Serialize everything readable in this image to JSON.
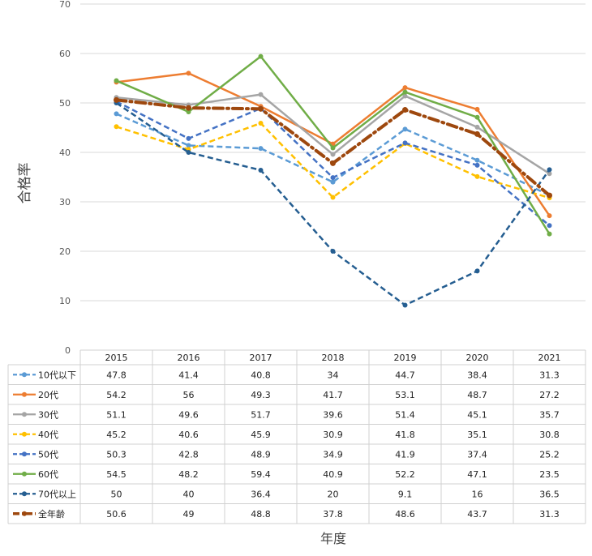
{
  "chart_data": {
    "type": "line",
    "title": "",
    "xlabel": "年度",
    "ylabel": "合格率",
    "ylim": [
      0,
      70
    ],
    "yticks": [
      0,
      10,
      20,
      30,
      40,
      50,
      60,
      70
    ],
    "grid": true,
    "legend": "data-table-left",
    "categories": [
      "2015",
      "2016",
      "2017",
      "2018",
      "2019",
      "2020",
      "2021"
    ],
    "series": [
      {
        "name": "10代以下",
        "values": [
          47.8,
          41.4,
          40.8,
          34,
          44.7,
          38.4,
          31.3
        ],
        "color": "#5b9bd5",
        "dash": "dash",
        "width": 2.5
      },
      {
        "name": "20代",
        "values": [
          54.2,
          56,
          49.3,
          41.7,
          53.1,
          48.7,
          27.2
        ],
        "color": "#ed7d31",
        "dash": "solid",
        "width": 2.5
      },
      {
        "name": "30代",
        "values": [
          51.1,
          49.6,
          51.7,
          39.6,
          51.4,
          45.1,
          35.7
        ],
        "color": "#a5a5a5",
        "dash": "solid",
        "width": 2.5
      },
      {
        "name": "40代",
        "values": [
          45.2,
          40.6,
          45.9,
          30.9,
          41.8,
          35.1,
          30.8
        ],
        "color": "#ffc000",
        "dash": "dash",
        "width": 2.5
      },
      {
        "name": "50代",
        "values": [
          50.3,
          42.8,
          48.9,
          34.9,
          41.9,
          37.4,
          25.2
        ],
        "color": "#4472c4",
        "dash": "dash",
        "width": 2.5
      },
      {
        "name": "60代",
        "values": [
          54.5,
          48.2,
          59.4,
          40.9,
          52.2,
          47.1,
          23.5
        ],
        "color": "#70ad47",
        "dash": "solid",
        "width": 2.5
      },
      {
        "name": "70代以上",
        "values": [
          50,
          40,
          36.4,
          20,
          9.1,
          16,
          36.5
        ],
        "color": "#255e91",
        "dash": "dash",
        "width": 2.5
      },
      {
        "name": "全年齢",
        "values": [
          50.6,
          49,
          48.8,
          37.8,
          48.6,
          43.7,
          31.3
        ],
        "color": "#9e480e",
        "dash": "dashdot",
        "width": 4
      }
    ]
  }
}
